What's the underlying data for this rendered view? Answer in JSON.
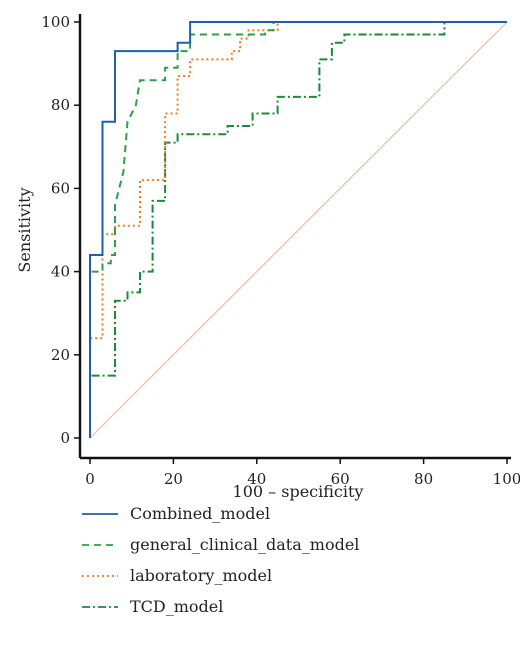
{
  "chart_data": {
    "type": "line",
    "title": "",
    "xlabel": "100 – specificity",
    "ylabel": "Sensitivity",
    "xlim": [
      0,
      100
    ],
    "ylim": [
      0,
      100
    ],
    "x_ticks": [
      "0",
      "20",
      "40",
      "60",
      "80",
      "100"
    ],
    "y_ticks": [
      "0",
      "20",
      "40",
      "60",
      "80",
      "100"
    ],
    "grid": false,
    "legend_position": "bottom",
    "reference_line": {
      "from": [
        0,
        0
      ],
      "to": [
        100,
        100
      ],
      "color": "#f2b8a8"
    },
    "series": [
      {
        "name": "Combined_model",
        "color": "#1f5fa8",
        "dash": "solid",
        "points": [
          [
            0,
            0
          ],
          [
            0,
            44
          ],
          [
            3,
            44
          ],
          [
            3,
            76
          ],
          [
            6,
            76
          ],
          [
            6,
            93
          ],
          [
            21,
            93
          ],
          [
            21,
            95
          ],
          [
            24,
            95
          ],
          [
            24,
            100
          ],
          [
            100,
            100
          ]
        ]
      },
      {
        "name": "general_clinical_data_model",
        "color": "#2e9e48",
        "dash": "dashed",
        "points": [
          [
            0,
            0
          ],
          [
            0,
            40
          ],
          [
            3,
            40
          ],
          [
            3,
            42
          ],
          [
            5,
            42
          ],
          [
            5,
            44
          ],
          [
            6,
            44
          ],
          [
            6,
            56
          ],
          [
            8,
            64
          ],
          [
            9,
            76
          ],
          [
            11,
            80
          ],
          [
            12,
            86
          ],
          [
            18,
            86
          ],
          [
            18,
            89
          ],
          [
            21,
            89
          ],
          [
            21,
            93
          ],
          [
            24,
            93
          ],
          [
            24,
            97
          ],
          [
            42,
            97
          ],
          [
            42,
            98
          ],
          [
            44,
            98
          ],
          [
            44,
            100
          ],
          [
            100,
            100
          ]
        ]
      },
      {
        "name": "laboratory_model",
        "color": "#f07b1c",
        "dash": "dotted",
        "points": [
          [
            0,
            0
          ],
          [
            0,
            24
          ],
          [
            3,
            24
          ],
          [
            3,
            49
          ],
          [
            6,
            49
          ],
          [
            6,
            51
          ],
          [
            12,
            51
          ],
          [
            12,
            62
          ],
          [
            18,
            62
          ],
          [
            18,
            78
          ],
          [
            21,
            78
          ],
          [
            21,
            87
          ],
          [
            24,
            87
          ],
          [
            24,
            91
          ],
          [
            34,
            91
          ],
          [
            34,
            93
          ],
          [
            36,
            93
          ],
          [
            36,
            96
          ],
          [
            38,
            96
          ],
          [
            38,
            98
          ],
          [
            45,
            98
          ],
          [
            45,
            100
          ],
          [
            100,
            100
          ]
        ]
      },
      {
        "name": "TCD_model",
        "color": "#1b8a3a",
        "dash": "dashdot",
        "points": [
          [
            0,
            0
          ],
          [
            0,
            15
          ],
          [
            6,
            15
          ],
          [
            6,
            33
          ],
          [
            9,
            33
          ],
          [
            9,
            35
          ],
          [
            12,
            35
          ],
          [
            12,
            40
          ],
          [
            15,
            40
          ],
          [
            15,
            57
          ],
          [
            18,
            57
          ],
          [
            18,
            71
          ],
          [
            21,
            71
          ],
          [
            21,
            73
          ],
          [
            33,
            73
          ],
          [
            33,
            75
          ],
          [
            39,
            75
          ],
          [
            39,
            78
          ],
          [
            45,
            78
          ],
          [
            45,
            82
          ],
          [
            55,
            82
          ],
          [
            55,
            91
          ],
          [
            58,
            91
          ],
          [
            58,
            95
          ],
          [
            61,
            95
          ],
          [
            61,
            97
          ],
          [
            85,
            97
          ],
          [
            85,
            100
          ],
          [
            100,
            100
          ]
        ]
      }
    ]
  }
}
